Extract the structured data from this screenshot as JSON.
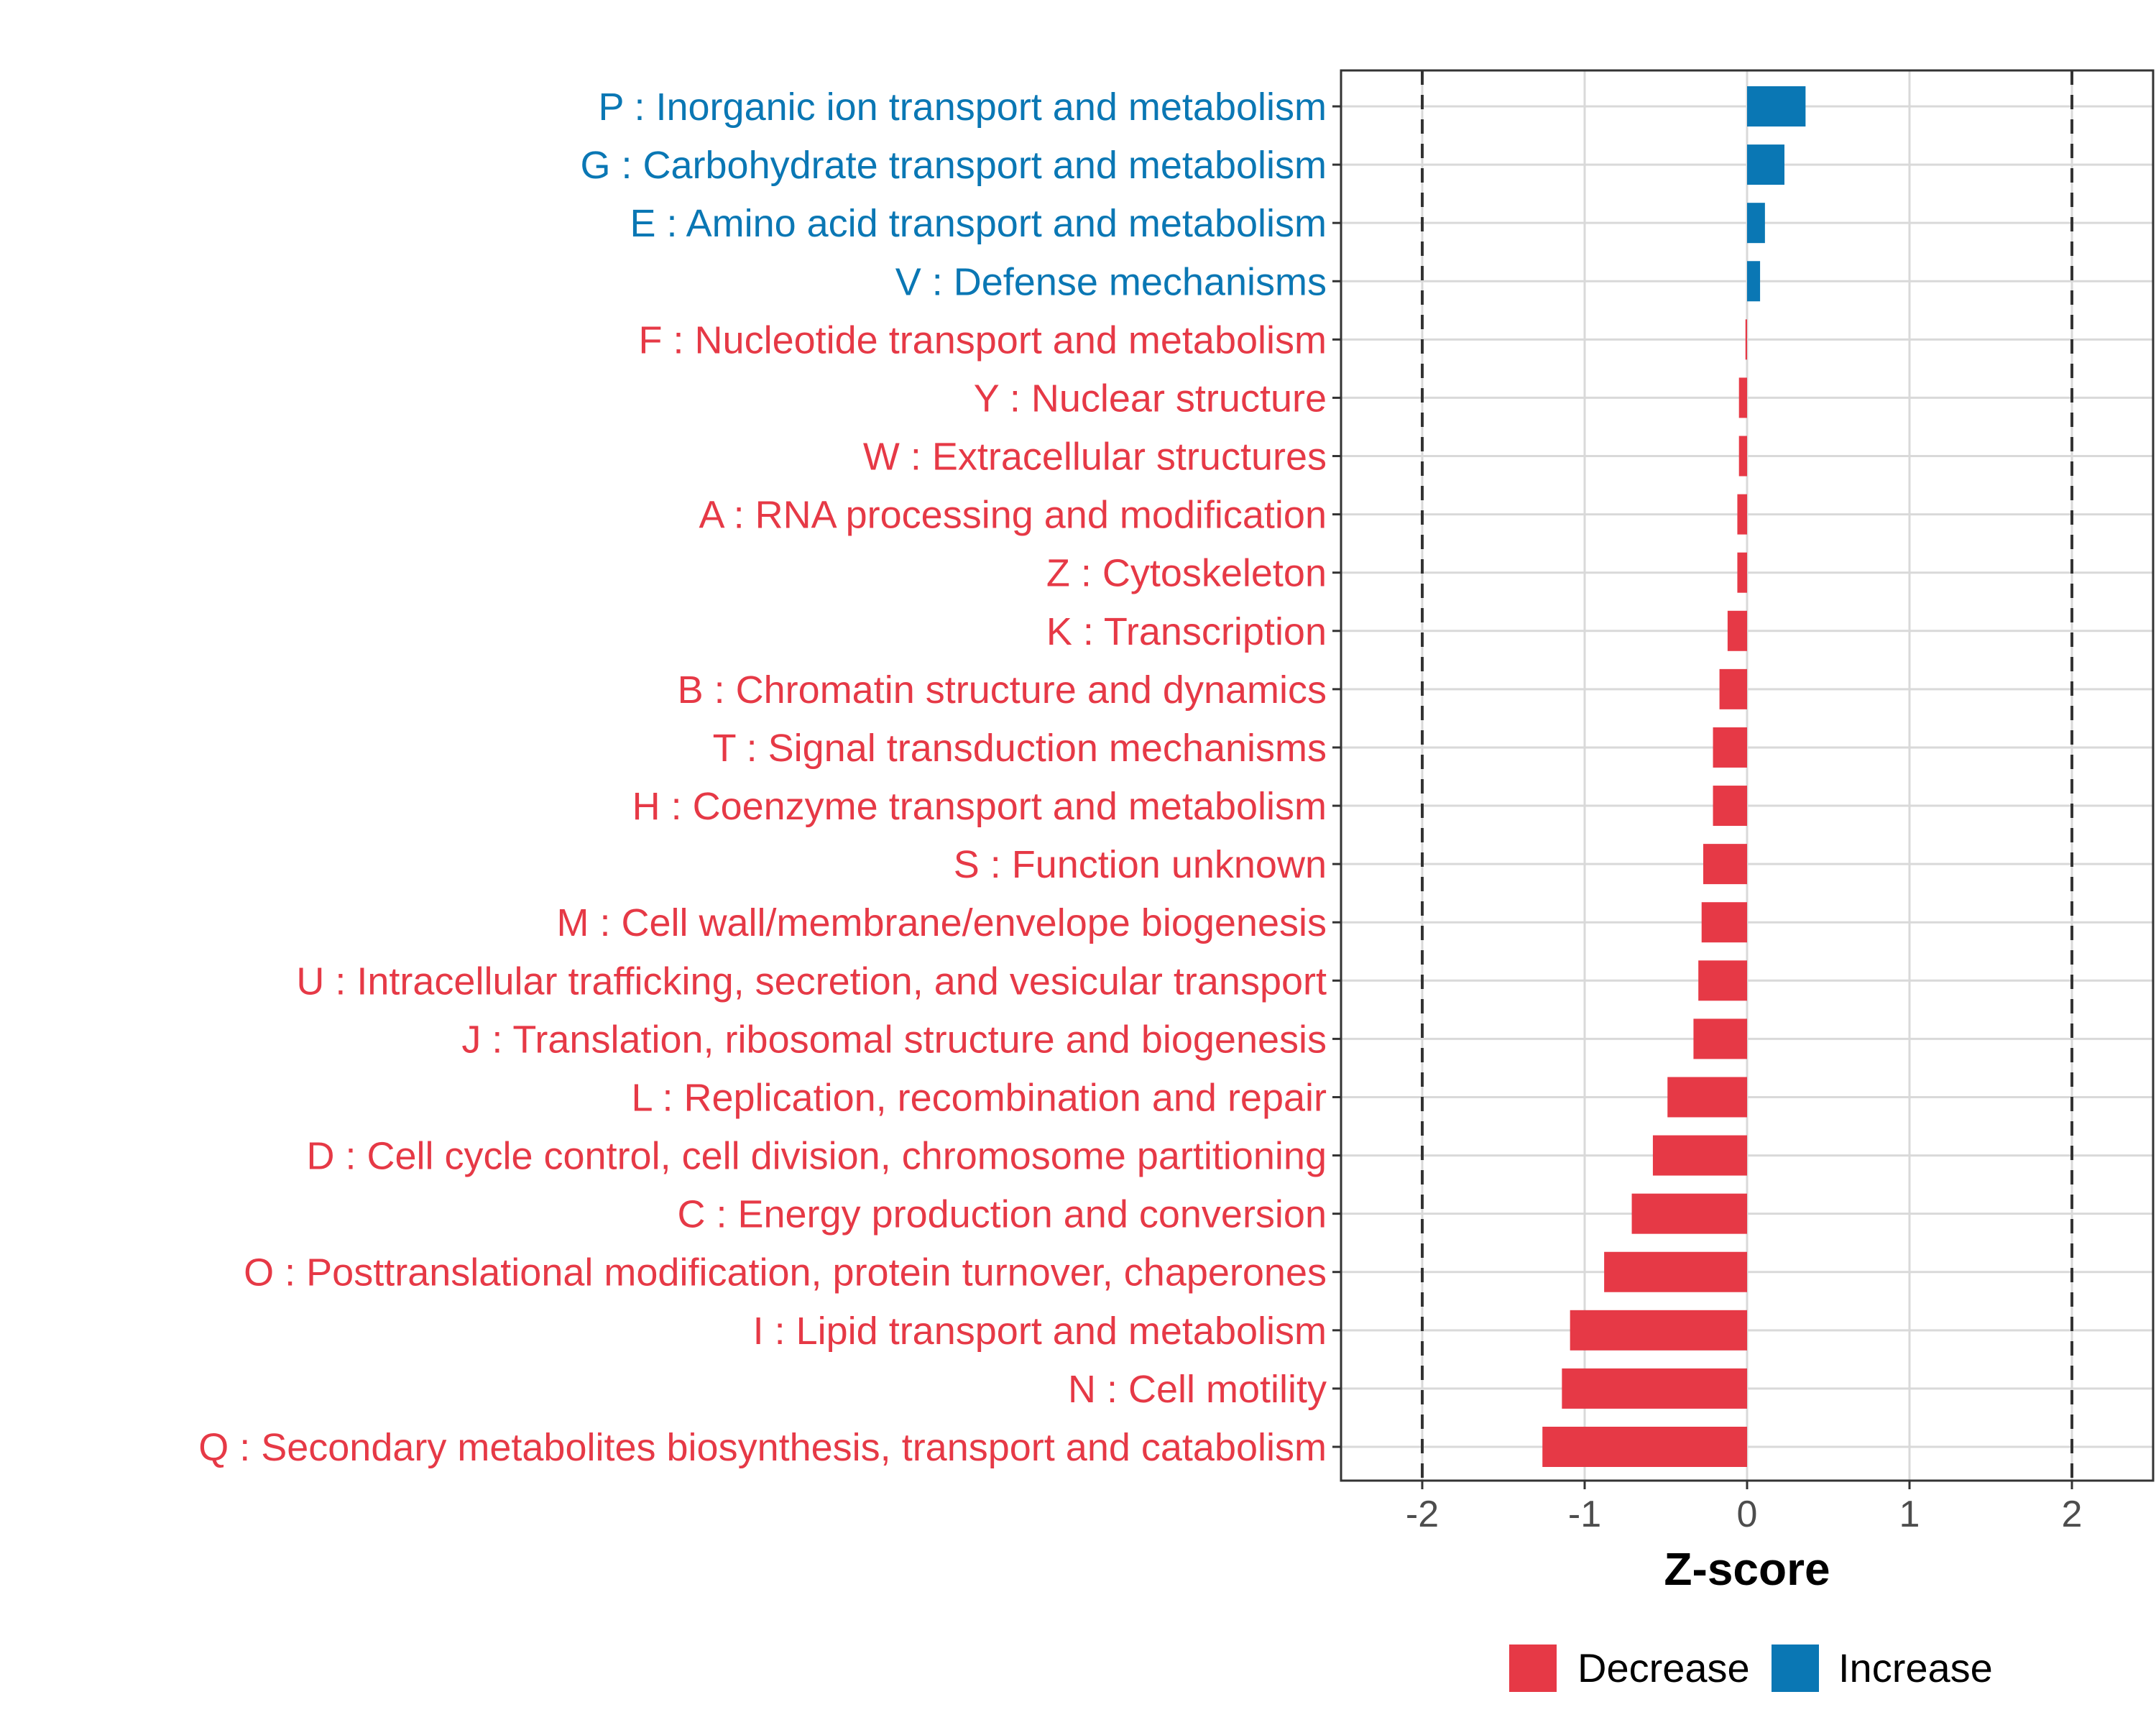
{
  "chart_data": {
    "type": "bar",
    "orientation": "horizontal",
    "title": "",
    "xlabel": "Z-score",
    "ylabel": "",
    "xlim": [
      -2.5,
      2.5
    ],
    "xticks": [
      "-2",
      "-1",
      "0",
      "1",
      "2"
    ],
    "xtick_values": [
      -2,
      -1,
      0,
      1,
      2
    ],
    "reference_lines": [
      -2,
      2
    ],
    "grid": true,
    "categories": [
      "P : Inorganic ion transport and metabolism",
      "G : Carbohydrate transport and metabolism",
      "E : Amino acid transport and metabolism",
      "V : Defense mechanisms",
      "F : Nucleotide transport and metabolism",
      "Y : Nuclear structure",
      "W : Extracellular structures",
      "A : RNA processing and modification",
      "Z : Cytoskeleton",
      "K : Transcription",
      "B : Chromatin structure and dynamics",
      "T : Signal transduction mechanisms",
      "H : Coenzyme transport and metabolism",
      "S : Function unknown",
      "M : Cell wall/membrane/envelope biogenesis",
      "U : Intracellular trafficking, secretion, and vesicular transport",
      "J : Translation, ribosomal structure and biogenesis",
      "L : Replication, recombination and repair",
      "D : Cell cycle control, cell division, chromosome partitioning",
      "C : Energy production and conversion",
      "O : Posttranslational modification, protein turnover, chaperones",
      "I : Lipid transport and metabolism",
      "N : Cell motility",
      "Q : Secondary metabolites biosynthesis, transport and catabolism"
    ],
    "values": [
      0.36,
      0.23,
      0.11,
      0.08,
      -0.01,
      -0.05,
      -0.05,
      -0.06,
      -0.06,
      -0.12,
      -0.17,
      -0.21,
      -0.21,
      -0.27,
      -0.28,
      -0.3,
      -0.33,
      -0.49,
      -0.58,
      -0.71,
      -0.88,
      -1.09,
      -1.14,
      -1.26
    ],
    "groups": [
      "Increase",
      "Increase",
      "Increase",
      "Increase",
      "Decrease",
      "Decrease",
      "Decrease",
      "Decrease",
      "Decrease",
      "Decrease",
      "Decrease",
      "Decrease",
      "Decrease",
      "Decrease",
      "Decrease",
      "Decrease",
      "Decrease",
      "Decrease",
      "Decrease",
      "Decrease",
      "Decrease",
      "Decrease",
      "Decrease",
      "Decrease"
    ],
    "legend": {
      "position": "bottom",
      "entries": [
        {
          "label": "Decrease",
          "color": "#e63946"
        },
        {
          "label": "Increase",
          "color": "#0a77b4"
        }
      ]
    },
    "colors": {
      "Decrease": "#e63946",
      "Increase": "#0a77b4"
    }
  }
}
